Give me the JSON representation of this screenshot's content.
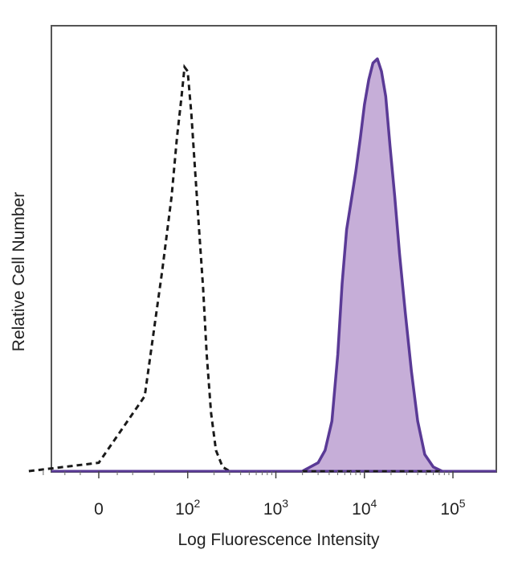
{
  "chart_data": {
    "type": "area",
    "xlabel": "Log Fluorescence Intensity",
    "ylabel": "Relative Cell Number",
    "xscale": "biexponential (log above 10^2, linear near 0)",
    "grid": false,
    "ticks": [
      {
        "base": "0",
        "exp": "",
        "value": 0
      },
      {
        "base": "10",
        "exp": "2",
        "value": 100
      },
      {
        "base": "10",
        "exp": "3",
        "value": 1000
      },
      {
        "base": "10",
        "exp": "4",
        "value": 10000
      },
      {
        "base": "10",
        "exp": "5",
        "value": 100000
      }
    ],
    "series": [
      {
        "style": "dashed-black-line",
        "x": [
          -60,
          0,
          30,
          50,
          65,
          75,
          85,
          92,
          100,
          110,
          120,
          135,
          150,
          165,
          185,
          210,
          250,
          300
        ],
        "y": [
          0,
          2,
          18,
          48,
          66,
          80,
          90,
          97,
          96,
          86,
          74,
          58,
          44,
          28,
          14,
          5,
          1,
          0
        ]
      },
      {
        "style": "purple-filled",
        "x": [
          2000,
          3000,
          3600,
          4300,
          5000,
          5600,
          6300,
          7100,
          8000,
          9000,
          10000,
          11200,
          12500,
          14000,
          15600,
          17400,
          19500,
          22000,
          25000,
          29000,
          34000,
          40000,
          48000,
          60000,
          75000
        ],
        "y": [
          0,
          2,
          5,
          12,
          28,
          45,
          58,
          65,
          72,
          80,
          88,
          94,
          98,
          99,
          96,
          90,
          78,
          66,
          52,
          38,
          24,
          12,
          4,
          1,
          0
        ]
      }
    ],
    "colors": {
      "purple_line": "#5a3a96",
      "purple_fill": "#c6aed8",
      "dashed_line": "#1a1a1a",
      "frame": "#444444"
    }
  }
}
